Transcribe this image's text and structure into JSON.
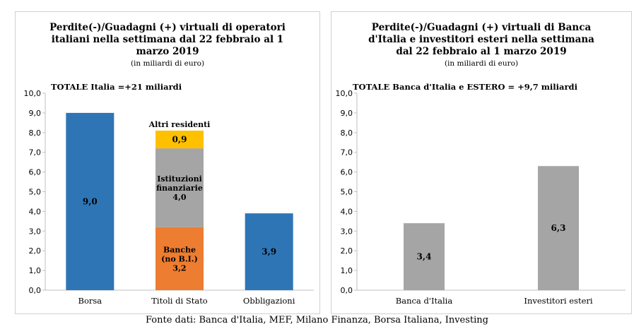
{
  "panels": [
    {
      "title_lines": [
        "Perdite(-)/Guadagni (+) virtuali di operatori",
        "italiani nella settimana dal 22 febbraio  al 1",
        "marzo 2019"
      ],
      "note": "(in miliardi di euro)",
      "total": "TOTALE  Italia =+21 miliardi"
    },
    {
      "title_lines": [
        "Perdite(-)/Guadagni (+)  virtuali di Banca",
        "d'Italia e investitori esteri  nella settimana",
        "dal 22 febbraio  al 1 marzo 2019"
      ],
      "note": "(in miliardi di euro)",
      "total": "TOTALE  Banca d'Italia e ESTERO = +9,7 miliardi"
    }
  ],
  "source": "Fonte dati: Banca d'Italia, MEF, Milano Finanza, Borsa Italiana, Investing",
  "colors": {
    "blue": "#2e75b6",
    "orange": "#ed7d31",
    "gray": "#a5a5a5",
    "gold": "#ffc000",
    "axis": "#bfbfbf"
  },
  "chart_data": [
    {
      "type": "bar",
      "stacked": true,
      "categories": [
        "Borsa",
        "Titoli di Stato",
        "Obbligazioni"
      ],
      "ylim": [
        0,
        10
      ],
      "yticks": [
        "0,0",
        "1,0",
        "2,0",
        "3,0",
        "4,0",
        "5,0",
        "6,0",
        "7,0",
        "8,0",
        "9,0",
        "10,0"
      ],
      "bars": [
        {
          "category": "Borsa",
          "segments": [
            {
              "value": 9.0,
              "label": "9,0",
              "color": "#2e75b6"
            }
          ]
        },
        {
          "category": "Titoli di Stato",
          "segments": [
            {
              "value": 3.2,
              "label_lines": [
                "Banche",
                "(no B.I.)",
                "3,2"
              ],
              "color": "#ed7d31"
            },
            {
              "value": 4.0,
              "label_lines": [
                "Istituzioni",
                "finanziarie",
                "4,0"
              ],
              "color": "#a5a5a5"
            },
            {
              "value": 0.9,
              "label": "0,9",
              "color": "#ffc000",
              "name_above": "Altri residenti"
            }
          ]
        },
        {
          "category": "Obbligazioni",
          "segments": [
            {
              "value": 3.9,
              "label": "3,9",
              "color": "#2e75b6"
            }
          ]
        }
      ]
    },
    {
      "type": "bar",
      "categories": [
        "Banca d'Italia",
        "Investitori esteri"
      ],
      "values": [
        3.4,
        6.3
      ],
      "labels": [
        "3,4",
        "6,3"
      ],
      "color": "#a5a5a5",
      "ylim": [
        0,
        10
      ],
      "yticks": [
        "0,0",
        "1,0",
        "2,0",
        "3,0",
        "4,0",
        "5,0",
        "6,0",
        "7,0",
        "8,0",
        "9,0",
        "10,0"
      ]
    }
  ]
}
